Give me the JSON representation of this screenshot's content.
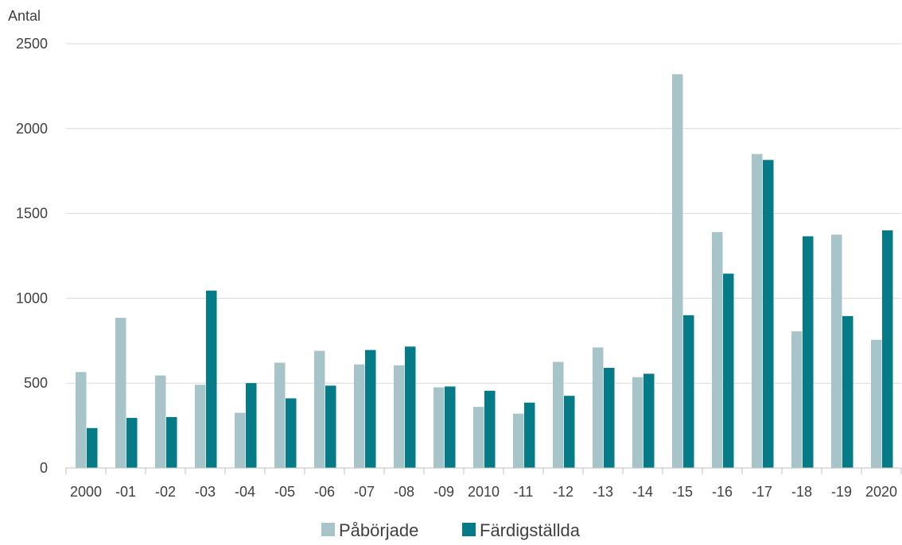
{
  "chart_data": {
    "type": "bar",
    "ylabel": "Antal",
    "ylim": [
      0,
      2500
    ],
    "yticks": [
      0,
      500,
      1000,
      1500,
      2000,
      2500
    ],
    "grid": true,
    "legend_position": "bottom",
    "categories": [
      "2000",
      "-01",
      "-02",
      "-03",
      "-04",
      "-05",
      "-06",
      "-07",
      "-08",
      "-09",
      "2010",
      "-11",
      "-12",
      "-13",
      "-14",
      "-15",
      "-16",
      "-17",
      "-18",
      "-19",
      "2020"
    ],
    "series": [
      {
        "name": "Påbörjade",
        "color": "#a7c4c8",
        "values": [
          565,
          885,
          545,
          490,
          325,
          620,
          690,
          610,
          605,
          475,
          360,
          320,
          625,
          710,
          535,
          2320,
          1390,
          1850,
          805,
          1375,
          755
        ]
      },
      {
        "name": "Färdigställda",
        "color": "#047b86",
        "values": [
          235,
          295,
          300,
          1045,
          500,
          410,
          485,
          695,
          715,
          480,
          455,
          385,
          425,
          590,
          555,
          900,
          1145,
          1815,
          1365,
          895,
          1400
        ]
      }
    ]
  }
}
